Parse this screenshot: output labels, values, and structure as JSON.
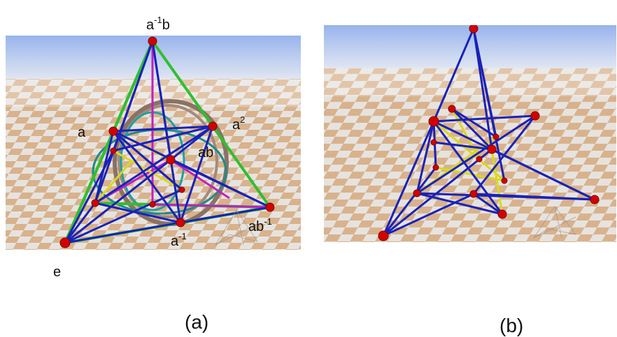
{
  "panel_a": {
    "caption": "(a)",
    "labels": {
      "top": {
        "base": "a",
        "sup": "-1",
        "tail": "b"
      },
      "a2": {
        "base": "a",
        "sup": "2",
        "tail": ""
      },
      "a": {
        "base": "a",
        "sup": "",
        "tail": ""
      },
      "ab": {
        "base": "ab",
        "sup": "",
        "tail": ""
      },
      "ab_inv": {
        "base": "ab",
        "sup": "-1",
        "tail": ""
      },
      "a_inv": {
        "base": "a",
        "sup": "-1",
        "tail": ""
      },
      "e": {
        "base": "e",
        "sup": "",
        "tail": ""
      }
    }
  },
  "panel_b": {
    "caption": "(b)"
  },
  "colors": {
    "vertex": "#d10000",
    "edge_blue": "#1a22b8",
    "edge_green": "#2fbf2f",
    "edge_magenta": "#c020c0",
    "edge_yellow": "#d8d820",
    "ring_brown": "#8a7266",
    "ring_teal": "#208a8a",
    "sky_top": "#9db8ec",
    "sky_bottom": "#dfe6f4",
    "floor_tan": "#d9b48f",
    "floor_light": "#e8e8e8"
  }
}
